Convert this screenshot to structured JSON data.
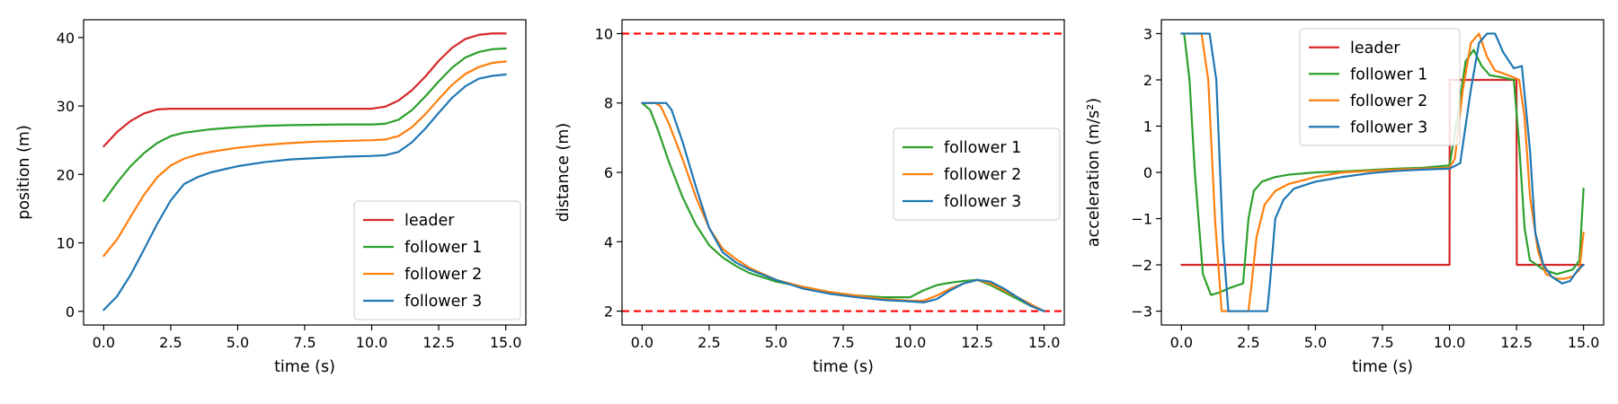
{
  "chart_data": [
    {
      "type": "line",
      "xlabel": "time (s)",
      "ylabel": "position (m)",
      "xlim": [
        -0.75,
        15.75
      ],
      "ylim": [
        -2.0,
        42.6
      ],
      "xticks": [
        0.0,
        2.5,
        5.0,
        7.5,
        10.0,
        12.5,
        15.0
      ],
      "xtick_labels": [
        "0.0",
        "2.5",
        "5.0",
        "7.5",
        "10.0",
        "12.5",
        "15.0"
      ],
      "yticks": [
        0,
        10,
        20,
        30,
        40
      ],
      "ytick_labels": [
        "0",
        "10",
        "20",
        "30",
        "40"
      ],
      "legend": "lower right",
      "series": [
        {
          "name": "leader",
          "color": "#d62728",
          "x": [
            0,
            0.5,
            1.0,
            1.5,
            2.0,
            2.5,
            5,
            10,
            10.5,
            11,
            11.5,
            12,
            12.5,
            13,
            13.5,
            14,
            14.5,
            15
          ],
          "y": [
            24.1,
            26.2,
            27.8,
            28.9,
            29.5,
            29.6,
            29.6,
            29.6,
            29.9,
            30.8,
            32.3,
            34.3,
            36.6,
            38.5,
            39.8,
            40.4,
            40.6,
            40.6
          ]
        },
        {
          "name": "follower 1",
          "color": "#2ca02c",
          "x": [
            0,
            0.5,
            1.0,
            1.5,
            2.0,
            2.5,
            3,
            4,
            5,
            6,
            7,
            8,
            9,
            10,
            10.5,
            11,
            11.5,
            12,
            12.5,
            13,
            13.5,
            14,
            14.5,
            15
          ],
          "y": [
            16.1,
            18.8,
            21.2,
            23.1,
            24.6,
            25.6,
            26.1,
            26.6,
            26.9,
            27.1,
            27.2,
            27.25,
            27.3,
            27.3,
            27.4,
            28.0,
            29.4,
            31.4,
            33.6,
            35.6,
            37.1,
            37.9,
            38.3,
            38.4
          ]
        },
        {
          "name": "follower 2",
          "color": "#ff7f0e",
          "x": [
            0,
            0.5,
            1.0,
            1.5,
            2.0,
            2.5,
            3,
            3.5,
            4,
            5,
            6,
            7,
            8,
            9,
            10,
            10.5,
            11,
            11.5,
            12,
            12.5,
            13,
            13.5,
            14,
            14.5,
            15
          ],
          "y": [
            8.1,
            10.5,
            13.8,
            17.0,
            19.6,
            21.3,
            22.3,
            22.9,
            23.3,
            23.9,
            24.3,
            24.6,
            24.8,
            24.9,
            25.0,
            25.1,
            25.6,
            26.9,
            28.8,
            31.0,
            33.1,
            34.7,
            35.7,
            36.3,
            36.5
          ]
        },
        {
          "name": "follower 3",
          "color": "#1f77b4",
          "x": [
            0,
            0.5,
            1.0,
            1.5,
            2.0,
            2.5,
            3,
            3.5,
            4,
            5,
            6,
            7,
            8,
            9,
            10,
            10.5,
            11,
            11.5,
            12,
            12.5,
            13,
            13.5,
            14,
            14.5,
            15
          ],
          "y": [
            0.2,
            2.2,
            5.3,
            9.0,
            12.8,
            16.2,
            18.6,
            19.6,
            20.3,
            21.2,
            21.8,
            22.2,
            22.4,
            22.6,
            22.7,
            22.8,
            23.3,
            24.7,
            26.7,
            29.0,
            31.2,
            32.9,
            34.0,
            34.4,
            34.6
          ]
        }
      ]
    },
    {
      "type": "line",
      "xlabel": "time (s)",
      "ylabel": "distance (m)",
      "xlim": [
        -0.75,
        15.75
      ],
      "ylim": [
        1.6,
        10.4
      ],
      "xticks": [
        0.0,
        2.5,
        5.0,
        7.5,
        10.0,
        12.5,
        15.0
      ],
      "xtick_labels": [
        "0.0",
        "2.5",
        "5.0",
        "7.5",
        "10.0",
        "12.5",
        "15.0"
      ],
      "yticks": [
        2,
        4,
        6,
        8,
        10
      ],
      "ytick_labels": [
        "2",
        "4",
        "6",
        "8",
        "10"
      ],
      "legend": "center right",
      "reference_lines": [
        {
          "y": 10,
          "color": "#ff0000",
          "style": "dashed"
        },
        {
          "y": 2,
          "color": "#ff0000",
          "style": "dashed"
        }
      ],
      "series": [
        {
          "name": "follower 1",
          "color": "#2ca02c",
          "x": [
            0,
            0.3,
            0.6,
            1.0,
            1.5,
            2.0,
            2.5,
            3,
            3.5,
            4,
            5,
            6,
            7,
            8,
            9,
            10,
            10.5,
            11,
            11.5,
            12,
            12.5,
            13,
            13.5,
            14,
            14.5,
            15
          ],
          "y": [
            8.0,
            7.8,
            7.2,
            6.3,
            5.3,
            4.5,
            3.9,
            3.55,
            3.3,
            3.1,
            2.85,
            2.7,
            2.55,
            2.45,
            2.4,
            2.4,
            2.6,
            2.75,
            2.82,
            2.87,
            2.9,
            2.75,
            2.55,
            2.35,
            2.15,
            2.0
          ]
        },
        {
          "name": "follower 2",
          "color": "#ff7f0e",
          "x": [
            0,
            0.5,
            0.7,
            1.0,
            1.5,
            2.0,
            2.5,
            3,
            3.5,
            4,
            5,
            6,
            7,
            8,
            9,
            10,
            10.5,
            11,
            11.5,
            12,
            12.5,
            13,
            13.5,
            14,
            14.5,
            15
          ],
          "y": [
            8.0,
            8.0,
            7.9,
            7.4,
            6.4,
            5.3,
            4.4,
            3.8,
            3.5,
            3.25,
            2.9,
            2.7,
            2.55,
            2.45,
            2.35,
            2.3,
            2.3,
            2.45,
            2.65,
            2.8,
            2.9,
            2.8,
            2.6,
            2.4,
            2.2,
            2.0
          ]
        },
        {
          "name": "follower 3",
          "color": "#1f77b4",
          "x": [
            0,
            0.9,
            1.1,
            1.5,
            2.0,
            2.5,
            3,
            3.5,
            4,
            5,
            6,
            7,
            8,
            9,
            10,
            10.5,
            11,
            11.5,
            12,
            12.5,
            13,
            13.5,
            14,
            14.5,
            15
          ],
          "y": [
            8.0,
            8.0,
            7.8,
            6.9,
            5.6,
            4.4,
            3.7,
            3.4,
            3.2,
            2.9,
            2.65,
            2.5,
            2.4,
            2.32,
            2.28,
            2.25,
            2.35,
            2.6,
            2.8,
            2.9,
            2.85,
            2.65,
            2.4,
            2.15,
            2.0
          ]
        }
      ]
    },
    {
      "type": "line",
      "xlabel": "time (s)",
      "ylabel": "acceleration (m/s²)",
      "xlim": [
        -0.75,
        15.75
      ],
      "ylim": [
        -3.3,
        3.3
      ],
      "xticks": [
        0.0,
        2.5,
        5.0,
        7.5,
        10.0,
        12.5,
        15.0
      ],
      "xtick_labels": [
        "0.0",
        "2.5",
        "5.0",
        "7.5",
        "10.0",
        "12.5",
        "15.0"
      ],
      "yticks": [
        -3,
        -2,
        -1,
        0,
        1,
        2,
        3
      ],
      "ytick_labels": [
        "−3",
        "−2",
        "−1",
        "0",
        "1",
        "2",
        "3"
      ],
      "legend": "upper center",
      "series": [
        {
          "name": "leader",
          "color": "#d62728",
          "x": [
            0,
            10,
            10.01,
            12.5,
            12.51,
            15
          ],
          "y": [
            -2,
            -2,
            2,
            2,
            -2,
            -2
          ]
        },
        {
          "name": "follower 1",
          "color": "#2ca02c",
          "x": [
            0,
            0.1,
            0.3,
            0.5,
            0.8,
            1.1,
            1.4,
            1.8,
            2.3,
            2.5,
            2.7,
            3,
            3.5,
            4,
            5,
            6,
            7,
            8,
            9,
            10,
            10.3,
            10.6,
            10.9,
            11.2,
            11.5,
            12,
            12.4,
            12.6,
            12.8,
            13,
            13.5,
            14,
            14.3,
            14.6,
            14.85,
            15.0
          ],
          "y": [
            3,
            3,
            2.0,
            0,
            -2.2,
            -2.65,
            -2.6,
            -2.5,
            -2.4,
            -1.0,
            -0.4,
            -0.2,
            -0.1,
            -0.05,
            0,
            0.02,
            0.05,
            0.08,
            0.1,
            0.15,
            1.2,
            2.4,
            2.65,
            2.3,
            2.1,
            2.05,
            2.0,
            0.6,
            -1.2,
            -1.9,
            -2.1,
            -2.2,
            -2.15,
            -2.1,
            -1.9,
            -0.35
          ]
        },
        {
          "name": "follower 2",
          "color": "#ff7f0e",
          "x": [
            0,
            0.55,
            0.75,
            1.0,
            1.25,
            1.5,
            2.5,
            2.6,
            2.8,
            3.1,
            3.5,
            4,
            5,
            6,
            7,
            8,
            9,
            10,
            10.2,
            10.5,
            10.8,
            11.1,
            11.4,
            11.7,
            12.2,
            12.6,
            12.8,
            13.0,
            13.3,
            13.6,
            14.0,
            14.3,
            14.6,
            14.85,
            15.0
          ],
          "y": [
            3,
            3,
            3,
            2.0,
            -1.0,
            -3.0,
            -3.0,
            -2.5,
            -1.4,
            -0.7,
            -0.4,
            -0.25,
            -0.1,
            0,
            0.03,
            0.06,
            0.08,
            0.1,
            0.3,
            1.8,
            2.8,
            3.0,
            2.5,
            2.2,
            2.1,
            2.0,
            1.2,
            -0.5,
            -1.7,
            -2.2,
            -2.3,
            -2.3,
            -2.25,
            -2.1,
            -1.3
          ]
        },
        {
          "name": "follower 3",
          "color": "#1f77b4",
          "x": [
            0,
            0.95,
            1.05,
            1.3,
            1.55,
            1.75,
            3.2,
            3.3,
            3.5,
            3.8,
            4.2,
            5,
            6,
            7,
            8,
            9,
            10,
            10.4,
            10.8,
            11.1,
            11.4,
            11.7,
            12.0,
            12.4,
            12.7,
            13.0,
            13.2,
            13.5,
            13.8,
            14.2,
            14.5,
            14.8,
            15.0
          ],
          "y": [
            3,
            3,
            3,
            2.0,
            -1.5,
            -3.0,
            -3.0,
            -2.4,
            -1.0,
            -0.6,
            -0.35,
            -0.2,
            -0.1,
            -0.02,
            0.03,
            0.06,
            0.08,
            0.2,
            1.8,
            2.8,
            3.0,
            3.0,
            2.6,
            2.25,
            2.3,
            0.5,
            -1.3,
            -2.0,
            -2.25,
            -2.4,
            -2.35,
            -2.1,
            -2.0
          ]
        }
      ]
    }
  ]
}
